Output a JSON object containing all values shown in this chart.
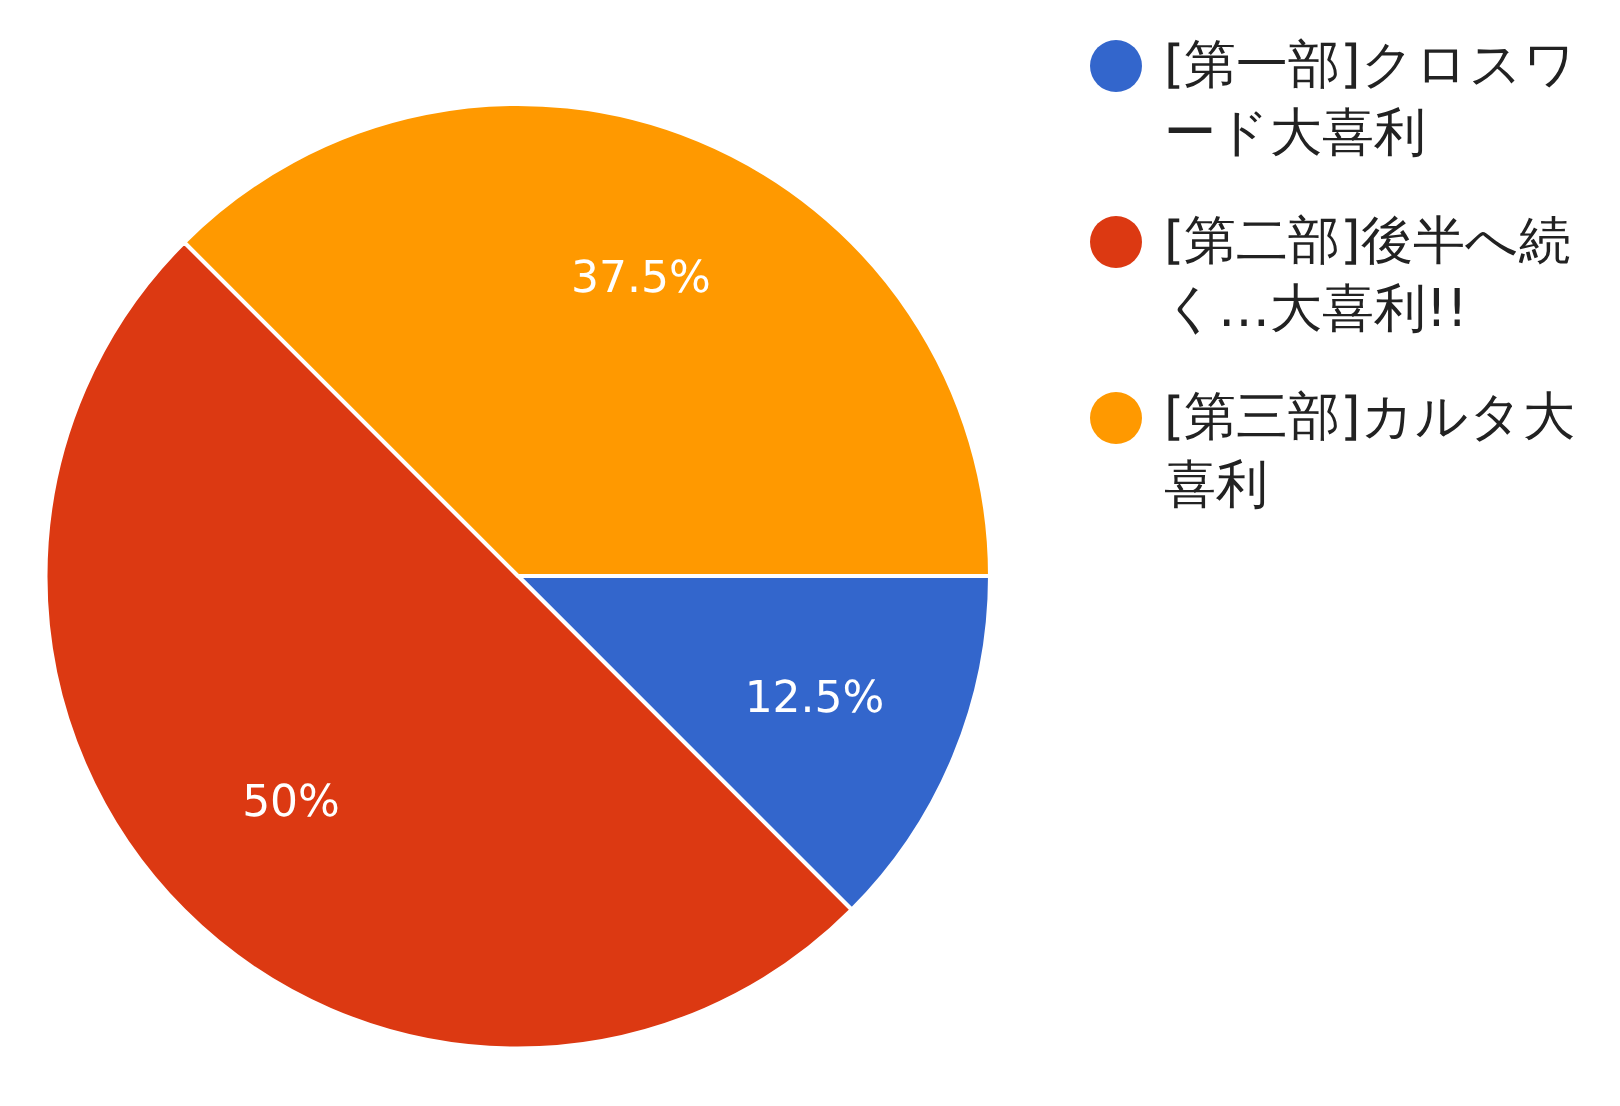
{
  "chart_data": {
    "type": "pie",
    "categories": [
      "[第一部]クロスワード大喜利",
      "[第二部]後半へ続く…大喜利!!",
      "[第三部]カルタ大喜利"
    ],
    "values": [
      12.5,
      50,
      37.5
    ],
    "colors": [
      "#3366cc",
      "#dc3912",
      "#ff9900"
    ],
    "value_labels": [
      "12.5%",
      "50%",
      "37.5%"
    ],
    "legend": "right"
  }
}
